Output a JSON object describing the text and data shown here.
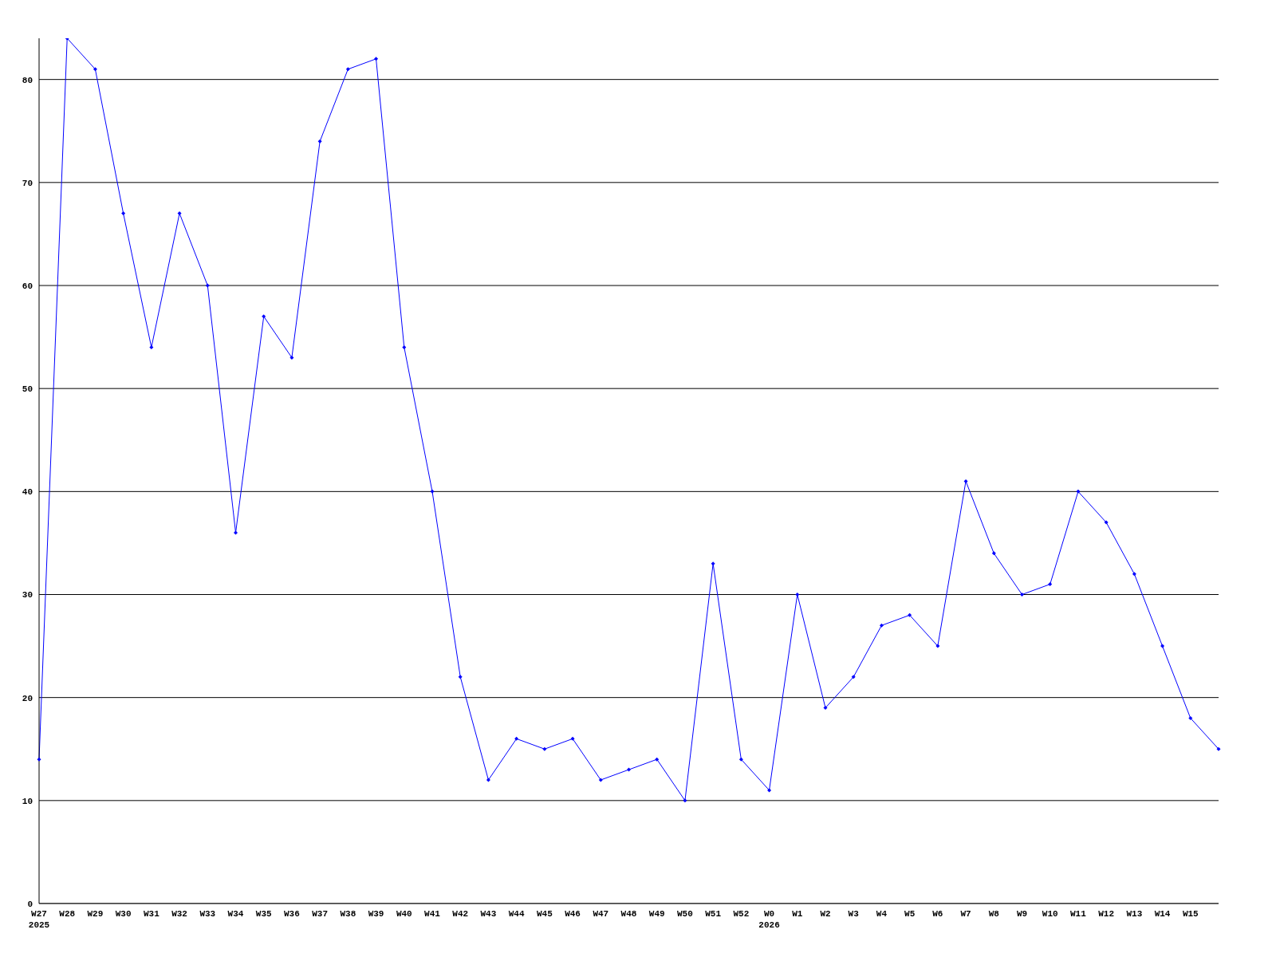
{
  "chart_data": {
    "type": "line",
    "categories": [
      "W27\n2025",
      "W28",
      "W29",
      "W30",
      "W31",
      "W32",
      "W33",
      "W34",
      "W35",
      "W36",
      "W37",
      "W38",
      "W39",
      "W40",
      "W41",
      "W42",
      "W43",
      "W44",
      "W45",
      "W46",
      "W47",
      "W48",
      "W49",
      "W50",
      "W51",
      "W52",
      "W0\n2026",
      "W1",
      "W2",
      "W3",
      "W4",
      "W5",
      "W6",
      "W7",
      "W8",
      "W9",
      "W10",
      "W11",
      "W12",
      "W13",
      "W14",
      "W15",
      null
    ],
    "series": [
      {
        "color": "#0000ff",
        "values": [
          14,
          84,
          81,
          67,
          54,
          67,
          60,
          36,
          57,
          53,
          74,
          81,
          82,
          54,
          40,
          22,
          12,
          16,
          15,
          16,
          12,
          13,
          14,
          10,
          33,
          14,
          11,
          30,
          19,
          22,
          27,
          28,
          25,
          41,
          34,
          30,
          31,
          40,
          37,
          32,
          25,
          18,
          15
        ]
      }
    ],
    "ylim": [
      0,
      84
    ],
    "yticks": [
      0,
      10,
      20,
      30,
      40,
      50,
      60,
      70,
      80
    ],
    "grid": "y",
    "marker": "diamond",
    "line_style": "solid"
  }
}
